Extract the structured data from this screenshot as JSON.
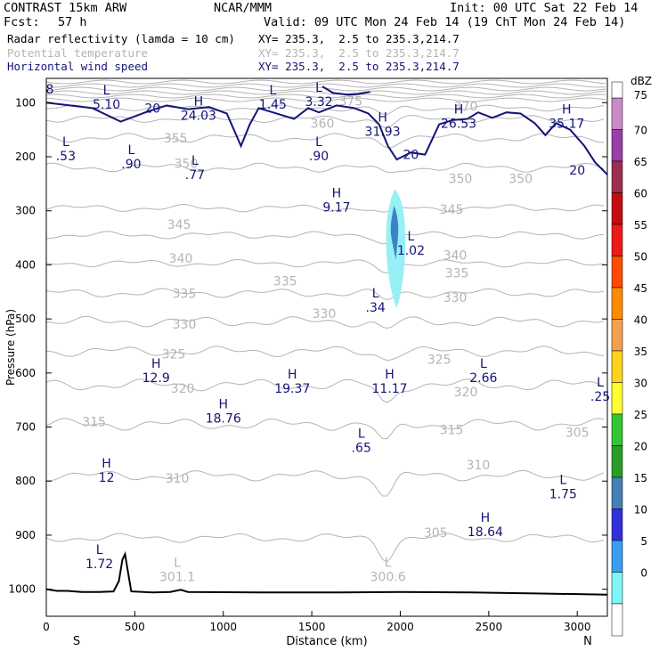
{
  "header": {
    "project": "CONTRAST 15km ARW",
    "source": "NCAR/MMM",
    "init": "Init: 00 UTC Sat 22 Feb 14",
    "fcst_label": "Fcst:",
    "fcst_value": "57 h",
    "valid": "Valid: 09 UTC Mon 24 Feb 14 (19 ChT Mon 24 Feb 14)",
    "fields": [
      {
        "name": "Radar reflectivity (lamda = 10 cm)",
        "xy": "XY= 235.3,  2.5 to 235.3,214.7"
      },
      {
        "name": "Potential temperature",
        "xy": "XY= 235.3,  2.5 to 235.3,214.7"
      },
      {
        "name": "Horizontal wind speed",
        "xy": "XY= 235.3,  2.5 to 235.3,214.7"
      }
    ]
  },
  "colors": {
    "theta": "#b4b4b4",
    "wind": "#141478",
    "terrain": "#000000",
    "refl_1": "#96f0f5",
    "refl_2": "#3c82c8"
  },
  "chart_data": {
    "type": "contour-cross-section",
    "xlabel": "Distance (km)",
    "ylabel": "Pressure (hPa)",
    "xlim": [
      0,
      3170
    ],
    "ylim": [
      1050,
      55
    ],
    "x_ticks": [
      0,
      500,
      1000,
      1500,
      2000,
      2500,
      3000
    ],
    "y_ticks": [
      100,
      200,
      300,
      400,
      500,
      600,
      700,
      800,
      900,
      1000
    ],
    "endpoints": {
      "left": "S",
      "right": "N"
    },
    "colorbar": {
      "unit": "dBZ",
      "levels": [
        "75",
        "70",
        "65",
        "60",
        "55",
        "50",
        "45",
        "40",
        "35",
        "30",
        "25",
        "20",
        "15",
        "10",
        "5",
        "0"
      ],
      "colors": [
        "#c98ac9",
        "#9940a8",
        "#9c2f50",
        "#c40d0d",
        "#ed1a1a",
        "#ff4a00",
        "#ff8b00",
        "#f3a050",
        "#ffd21e",
        "#ffff32",
        "#33c433",
        "#2a9c2a",
        "#4680b4",
        "#3232dc",
        "#3a9ef2",
        "#7ff5f5"
      ]
    },
    "theta_contours": [
      {
        "level": 305,
        "p": 905,
        "wave": 6
      },
      {
        "level": 310,
        "p": 790,
        "wave": 7
      },
      {
        "level": 315,
        "p": 695,
        "wave": 8
      },
      {
        "level": 320,
        "p": 622,
        "wave": 8
      },
      {
        "level": 325,
        "p": 560,
        "wave": 7
      },
      {
        "level": 330,
        "p": 505,
        "wave": 7
      },
      {
        "level": 335,
        "p": 452,
        "wave": 6
      },
      {
        "level": 340,
        "p": 397,
        "wave": 5
      },
      {
        "level": 345,
        "p": 345,
        "wave": 5
      },
      {
        "level": 350,
        "p": 295,
        "wave": 5
      },
      {
        "level": 355,
        "p": 220,
        "wave": 6
      },
      {
        "level": 360,
        "p": 165,
        "wave": 6
      },
      {
        "level": 365,
        "p": 130,
        "wave": 5
      },
      {
        "level": 370,
        "p": 110,
        "wave": 4
      }
    ],
    "theta_labels": [
      {
        "text": "305",
        "x": 2200,
        "p": 895
      },
      {
        "text": "310",
        "x": 740,
        "p": 795
      },
      {
        "text": "310",
        "x": 2440,
        "p": 770
      },
      {
        "text": "315",
        "x": 270,
        "p": 690
      },
      {
        "text": "315",
        "x": 2290,
        "p": 705
      },
      {
        "text": "320",
        "x": 770,
        "p": 628
      },
      {
        "text": "320",
        "x": 2370,
        "p": 635
      },
      {
        "text": "325",
        "x": 720,
        "p": 565
      },
      {
        "text": "325",
        "x": 2220,
        "p": 575
      },
      {
        "text": "330",
        "x": 780,
        "p": 510
      },
      {
        "text": "330",
        "x": 1570,
        "p": 490
      },
      {
        "text": "330",
        "x": 2310,
        "p": 460
      },
      {
        "text": "335",
        "x": 780,
        "p": 453
      },
      {
        "text": "335",
        "x": 1350,
        "p": 430
      },
      {
        "text": "335",
        "x": 2320,
        "p": 415
      },
      {
        "text": "340",
        "x": 760,
        "p": 388
      },
      {
        "text": "340",
        "x": 2310,
        "p": 382
      },
      {
        "text": "345",
        "x": 750,
        "p": 325
      },
      {
        "text": "345",
        "x": 2290,
        "p": 297
      },
      {
        "text": "350",
        "x": 790,
        "p": 212
      },
      {
        "text": "350",
        "x": 2340,
        "p": 240
      },
      {
        "text": "350",
        "x": 2680,
        "p": 240
      },
      {
        "text": "355",
        "x": 730,
        "p": 165
      },
      {
        "text": "360",
        "x": 1560,
        "p": 138
      },
      {
        "text": "370",
        "x": 2370,
        "p": 107
      },
      {
        "text": "375",
        "x": 1720,
        "p": 97
      },
      {
        "text": "305",
        "x": 3000,
        "p": 710
      }
    ],
    "wind_contours": [
      {
        "level": 20,
        "points": [
          [
            0,
            100
          ],
          [
            260,
            110
          ],
          [
            420,
            135
          ],
          [
            560,
            118
          ],
          [
            680,
            105
          ],
          [
            800,
            112
          ],
          [
            920,
            108
          ],
          [
            1020,
            120
          ],
          [
            1100,
            180
          ],
          [
            1150,
            140
          ],
          [
            1200,
            110
          ],
          [
            1280,
            118
          ],
          [
            1400,
            130
          ],
          [
            1480,
            110
          ],
          [
            1540,
            118
          ],
          [
            1640,
            105
          ],
          [
            1740,
            110
          ],
          [
            1820,
            120
          ],
          [
            1880,
            140
          ],
          [
            1930,
            180
          ],
          [
            1980,
            205
          ],
          [
            2060,
            192
          ],
          [
            2140,
            196
          ],
          [
            2220,
            140
          ],
          [
            2300,
            132
          ],
          [
            2380,
            130
          ],
          [
            2440,
            118
          ],
          [
            2520,
            128
          ],
          [
            2600,
            118
          ],
          [
            2680,
            120
          ],
          [
            2760,
            138
          ],
          [
            2820,
            160
          ],
          [
            2880,
            138
          ],
          [
            2960,
            150
          ],
          [
            3040,
            180
          ],
          [
            3100,
            210
          ],
          [
            3170,
            233
          ]
        ]
      },
      {
        "level": 20,
        "points": [
          [
            1560,
            70
          ],
          [
            1620,
            82
          ],
          [
            1700,
            85
          ],
          [
            1760,
            84
          ],
          [
            1830,
            80
          ]
        ]
      }
    ],
    "highs_lows": [
      {
        "type": "L",
        "value": "5.10",
        "x": 340,
        "p": 85
      },
      {
        "type": "H",
        "value": "24.03",
        "x": 860,
        "p": 105
      },
      {
        "type": "L",
        "value": "1.45",
        "x": 1280,
        "p": 85
      },
      {
        "type": "L",
        "value": "3.32",
        "x": 1540,
        "p": 80
      },
      {
        "type": "H",
        "value": "31.93",
        "x": 1900,
        "p": 135
      },
      {
        "type": "H",
        "value": "26.53",
        "x": 2330,
        "p": 120
      },
      {
        "type": "H",
        "value": "35.17",
        "x": 2940,
        "p": 120
      },
      {
        "type": "L",
        "value": ".53",
        "x": 110,
        "p": 180
      },
      {
        "type": "L",
        "value": ".90",
        "x": 480,
        "p": 195
      },
      {
        "type": "L",
        "value": ".77",
        "x": 840,
        "p": 215
      },
      {
        "type": "L",
        "value": ".90",
        "x": 1540,
        "p": 180
      },
      {
        "type": "H",
        "value": "9.17",
        "x": 1640,
        "p": 275
      },
      {
        "type": "L",
        "value": "1.02",
        "x": 2060,
        "p": 355
      },
      {
        "type": "L",
        "value": ".34",
        "x": 1860,
        "p": 460
      },
      {
        "type": "H",
        "value": "12.9",
        "x": 620,
        "p": 590
      },
      {
        "type": "L",
        "value": "2.66",
        "x": 2470,
        "p": 590
      },
      {
        "type": "H",
        "value": "19.37",
        "x": 1390,
        "p": 610
      },
      {
        "type": "H",
        "value": "11.17",
        "x": 1940,
        "p": 610
      },
      {
        "type": "L",
        "value": ".25",
        "x": 3130,
        "p": 625
      },
      {
        "type": "H",
        "value": "18.76",
        "x": 1000,
        "p": 665
      },
      {
        "type": "L",
        "value": ".65",
        "x": 1780,
        "p": 720
      },
      {
        "type": "H",
        "value": "12",
        "x": 340,
        "p": 775
      },
      {
        "type": "L",
        "value": "1.75",
        "x": 2920,
        "p": 805
      },
      {
        "type": "H",
        "value": "18.64",
        "x": 2480,
        "p": 875
      },
      {
        "type": "L",
        "value": "1.72",
        "x": 300,
        "p": 935
      }
    ],
    "dim_lows": [
      {
        "value": "301.1",
        "x": 740,
        "p": 965
      },
      {
        "value": "300.6",
        "x": 1930,
        "p": 965
      }
    ],
    "wind_contour_labels": [
      {
        "text": "20",
        "x": 600,
        "p": 110
      },
      {
        "text": "20",
        "x": 2060,
        "p": 196
      },
      {
        "text": "20",
        "x": 3000,
        "p": 225
      },
      {
        "text": "8",
        "x": 20,
        "p": 75
      }
    ],
    "reflectivity_cells": [
      {
        "level": "5-10 dBZ",
        "x_center": 1970,
        "p_top": 260,
        "p_bottom": 480,
        "width_km": 90
      },
      {
        "level": "10-20 dBZ",
        "x_center": 1965,
        "p_top": 290,
        "p_bottom": 390,
        "width_km": 35
      }
    ],
    "terrain": [
      [
        0,
        1000
      ],
      [
        60,
        1003
      ],
      [
        120,
        1003
      ],
      [
        200,
        1005
      ],
      [
        300,
        1005
      ],
      [
        380,
        1004
      ],
      [
        410,
        985
      ],
      [
        430,
        945
      ],
      [
        445,
        935
      ],
      [
        460,
        965
      ],
      [
        480,
        1004
      ],
      [
        600,
        1006
      ],
      [
        700,
        1005
      ],
      [
        760,
        1001
      ],
      [
        800,
        1005
      ],
      [
        1200,
        1006
      ],
      [
        1600,
        1006
      ],
      [
        2000,
        1005
      ],
      [
        2400,
        1006
      ],
      [
        2800,
        1008
      ],
      [
        3170,
        1010
      ]
    ]
  }
}
